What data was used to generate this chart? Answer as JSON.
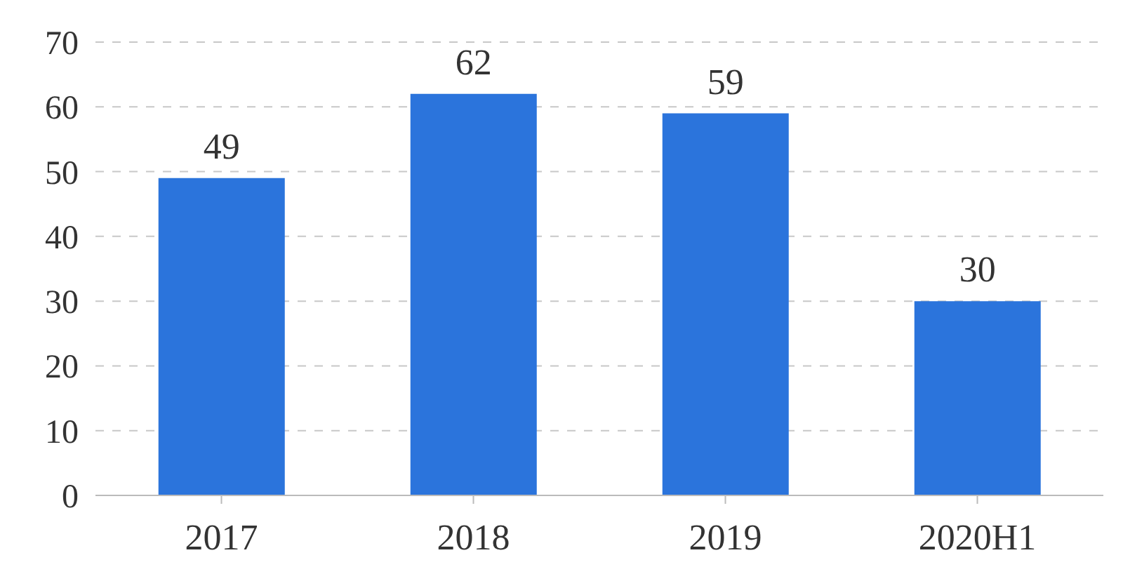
{
  "chart_data": {
    "type": "bar",
    "categories": [
      "2017",
      "2018",
      "2019",
      "2020H1"
    ],
    "values": [
      49,
      62,
      59,
      30
    ],
    "color": "#2b74dc",
    "ylim": [
      0,
      70
    ],
    "yticks": [
      0,
      10,
      20,
      30,
      40,
      50,
      60,
      70
    ],
    "grid": "y",
    "data_labels": true
  }
}
